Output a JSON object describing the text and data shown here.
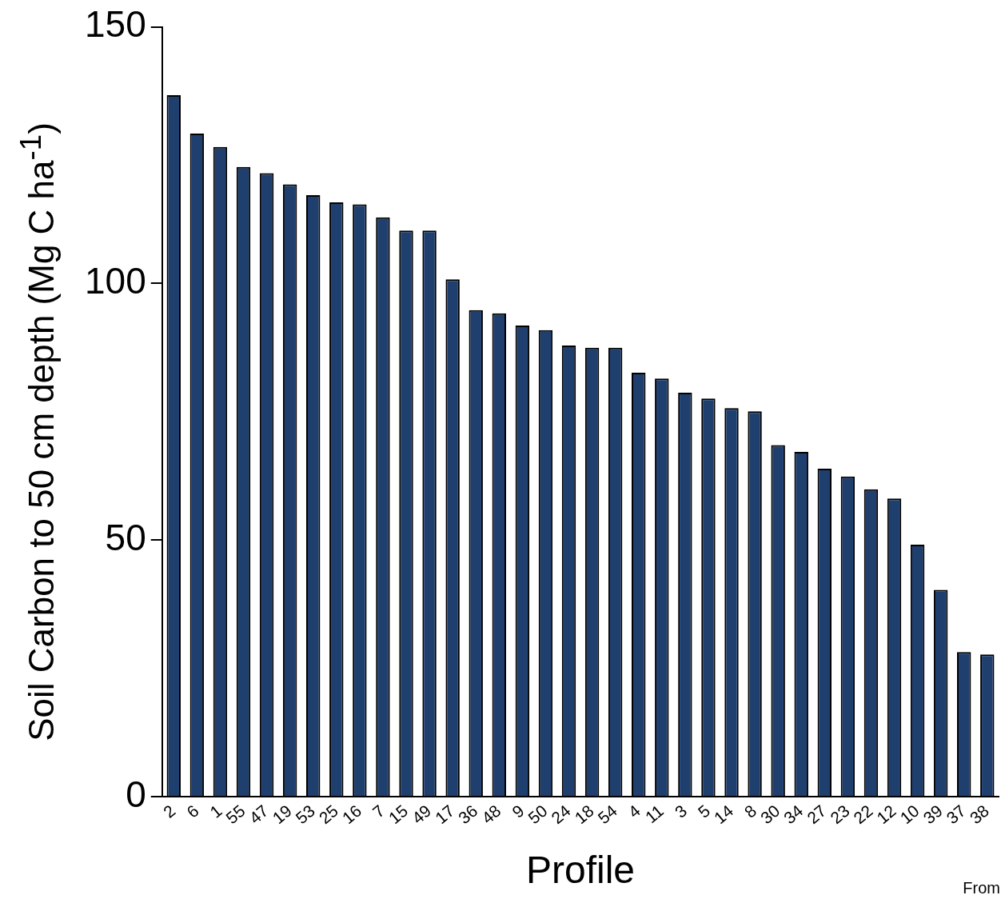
{
  "chart_data": {
    "type": "bar",
    "xlabel": "Profile",
    "ylabel": "Soil Carbon to 50 cm depth (Mg C ha$^{-1}$)",
    "annotations": [
      "From"
    ],
    "categories": [
      "2",
      "6",
      "1",
      "55",
      "47",
      "19",
      "53",
      "25",
      "16",
      "7",
      "15",
      "49",
      "17",
      "36",
      "48",
      "9",
      "50",
      "24",
      "18",
      "54",
      "4",
      "11",
      "3",
      "5",
      "14",
      "8",
      "30",
      "34",
      "27",
      "23",
      "22",
      "12",
      "10",
      "39",
      "37",
      "38"
    ],
    "values": [
      136.7,
      129.2,
      126.6,
      122.7,
      121.5,
      119.3,
      117.2,
      115.8,
      115.4,
      112.9,
      110.3,
      110.3,
      100.8,
      94.8,
      94.2,
      91.8,
      90.9,
      87.9,
      87.5,
      87.5,
      82.6,
      81.5,
      78.7,
      77.6,
      75.7,
      75.1,
      68.5,
      67.2,
      63.9,
      62.4,
      59.9,
      58.1,
      49.1,
      40.3,
      28.2,
      27.7
    ],
    "color": "#1f3f6e",
    "ylim": [
      0,
      150
    ],
    "yticks": [
      0,
      50,
      100,
      150
    ],
    "grid": false,
    "legend": false
  }
}
